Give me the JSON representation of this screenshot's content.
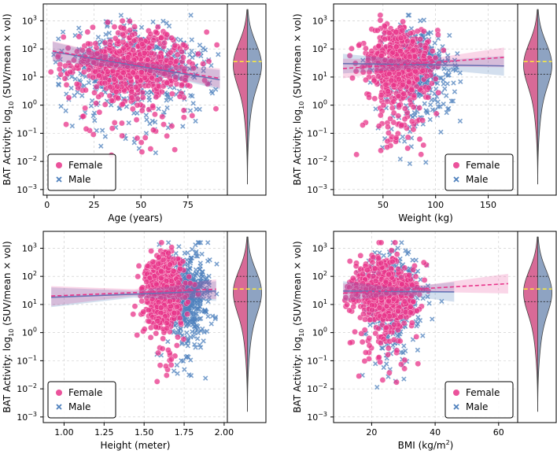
{
  "colors": {
    "female": "#e8348a",
    "male": "#4f81bd",
    "female_violin": "#d86a97",
    "male_violin": "#8ea3c2",
    "median_line": "#ffeb3b"
  },
  "chart_data": [
    {
      "type": "scatter",
      "xlabel": "Age (years)",
      "ylabel_prefix": "BAT Activity: log",
      "ylabel_sub": "10",
      "ylabel_suffix": " (SUV/mean × vol)",
      "xlim": [
        -2,
        96
      ],
      "ylim_log10": [
        -3.2,
        3.6
      ],
      "xticks": [
        0,
        25,
        50,
        75
      ],
      "xtick_labels": [
        "0",
        "25",
        "50",
        "75"
      ],
      "yticks_log10": [
        -3,
        -2,
        -1,
        0,
        1,
        2,
        3
      ],
      "ytick_labels": [
        [
          "10",
          "−3"
        ],
        [
          "10",
          "−2"
        ],
        [
          "10",
          "−1"
        ],
        [
          "10",
          "0"
        ],
        [
          "10",
          "1"
        ],
        [
          "10",
          "2"
        ],
        [
          "10",
          "3"
        ]
      ],
      "legend": {
        "position": "lower-left",
        "entries": [
          "Female",
          "Male"
        ]
      },
      "female_cloud": {
        "x_mean": 45,
        "x_sd": 17,
        "x_range": [
          2,
          92
        ],
        "y_mean_log10": 1.5,
        "y_sd_log10": 0.6
      },
      "male_cloud": {
        "x_mean": 47,
        "x_sd": 20,
        "x_range": [
          3,
          94
        ],
        "y_mean_log10": 1.4,
        "y_sd_log10": 0.7
      },
      "female_fit": {
        "x": [
          3,
          92
        ],
        "y": [
          85,
          9
        ]
      },
      "male_fit": {
        "x": [
          3,
          92
        ],
        "y": [
          80,
          8
        ]
      }
    },
    {
      "type": "scatter",
      "xlabel": "Weight (kg)",
      "ylabel_prefix": "BAT Activity: log",
      "ylabel_sub": "10",
      "ylabel_suffix": " (SUV/mean × vol)",
      "xlim": [
        3,
        178
      ],
      "ylim_log10": [
        -3.2,
        3.6
      ],
      "xticks": [
        50,
        100,
        150
      ],
      "xtick_labels": [
        "50",
        "100",
        "150"
      ],
      "yticks_log10": [
        -3,
        -2,
        -1,
        0,
        1,
        2,
        3
      ],
      "ytick_labels": [
        [
          "10",
          "−3"
        ],
        [
          "10",
          "−2"
        ],
        [
          "10",
          "−1"
        ],
        [
          "10",
          "0"
        ],
        [
          "10",
          "1"
        ],
        [
          "10",
          "2"
        ],
        [
          "10",
          "3"
        ]
      ],
      "legend": {
        "position": "lower-right",
        "entries": [
          "Female",
          "Male"
        ]
      },
      "female_cloud": {
        "x_mean": 65,
        "x_sd": 15,
        "x_range": [
          10,
          160
        ],
        "y_mean_log10": 1.5,
        "y_sd_log10": 0.6
      },
      "male_cloud": {
        "x_mean": 80,
        "x_sd": 17,
        "x_range": [
          30,
          165
        ],
        "y_mean_log10": 1.4,
        "y_sd_log10": 0.65
      },
      "female_fit": {
        "x": [
          12,
          165
        ],
        "y": [
          20,
          50
        ]
      },
      "male_fit": {
        "x": [
          12,
          165
        ],
        "y": [
          30,
          25
        ]
      }
    },
    {
      "type": "scatter",
      "xlabel": "Height (meter)",
      "ylabel_prefix": "BAT Activity: log",
      "ylabel_sub": "10",
      "ylabel_suffix": " (SUV/mean × vol)",
      "xlim": [
        0.87,
        2.02
      ],
      "ylim_log10": [
        -3.2,
        3.6
      ],
      "xticks": [
        1.0,
        1.25,
        1.5,
        1.75,
        2.0
      ],
      "xtick_labels": [
        "1.00",
        "1.25",
        "1.50",
        "1.75",
        "2.00"
      ],
      "yticks_log10": [
        -3,
        -2,
        -1,
        0,
        1,
        2,
        3
      ],
      "ytick_labels": [
        [
          "10",
          "−3"
        ],
        [
          "10",
          "−2"
        ],
        [
          "10",
          "−1"
        ],
        [
          "10",
          "0"
        ],
        [
          "10",
          "1"
        ],
        [
          "10",
          "2"
        ],
        [
          "10",
          "3"
        ]
      ],
      "legend": {
        "position": "lower-left",
        "entries": [
          "Female",
          "Male"
        ]
      },
      "female_cloud": {
        "x_mean": 1.62,
        "x_sd": 0.065,
        "x_range": [
          0.95,
          1.9
        ],
        "y_mean_log10": 1.5,
        "y_sd_log10": 0.6
      },
      "male_cloud": {
        "x_mean": 1.77,
        "x_sd": 0.07,
        "x_range": [
          0.9,
          1.96
        ],
        "y_mean_log10": 1.4,
        "y_sd_log10": 0.7
      },
      "female_fit": {
        "x": [
          0.92,
          1.95
        ],
        "y": [
          20,
          35
        ]
      },
      "male_fit": {
        "x": [
          0.92,
          1.95
        ],
        "y": [
          18,
          30
        ]
      }
    },
    {
      "type": "scatter",
      "xlabel": "BMI (kg/m",
      "xlabel_sup": "2",
      "xlabel_suffix": ")",
      "ylabel_prefix": "BAT Activity: log",
      "ylabel_sub": "10",
      "ylabel_suffix": " (SUV/mean × vol)",
      "xlim": [
        8,
        66
      ],
      "ylim_log10": [
        -3.2,
        3.6
      ],
      "xticks": [
        20,
        40,
        60
      ],
      "xtick_labels": [
        "20",
        "40",
        "60"
      ],
      "yticks_log10": [
        -3,
        -2,
        -1,
        0,
        1,
        2,
        3
      ],
      "ytick_labels": [
        [
          "10",
          "−3"
        ],
        [
          "10",
          "−2"
        ],
        [
          "10",
          "−1"
        ],
        [
          "10",
          "0"
        ],
        [
          "10",
          "1"
        ],
        [
          "10",
          "2"
        ],
        [
          "10",
          "3"
        ]
      ],
      "legend": {
        "position": "lower-right",
        "entries": [
          "Female",
          "Male"
        ]
      },
      "female_cloud": {
        "x_mean": 24,
        "x_sd": 5,
        "x_range": [
          11,
          62
        ],
        "y_mean_log10": 1.5,
        "y_sd_log10": 0.6
      },
      "male_cloud": {
        "x_mean": 26,
        "x_sd": 4.5,
        "x_range": [
          13,
          48
        ],
        "y_mean_log10": 1.4,
        "y_sd_log10": 0.7
      },
      "female_fit": {
        "x": [
          11,
          63
        ],
        "y": [
          25,
          55
        ]
      },
      "male_fit": {
        "x": [
          11,
          46
        ],
        "y": [
          30,
          28
        ]
      }
    }
  ],
  "violin": {
    "ylim_log10": [
      -3.2,
      3.6
    ],
    "support_log10": [
      -2.8,
      3.4
    ],
    "median_log10": 1.55,
    "q1_log10": 1.1,
    "q3_log10": 2.0
  }
}
